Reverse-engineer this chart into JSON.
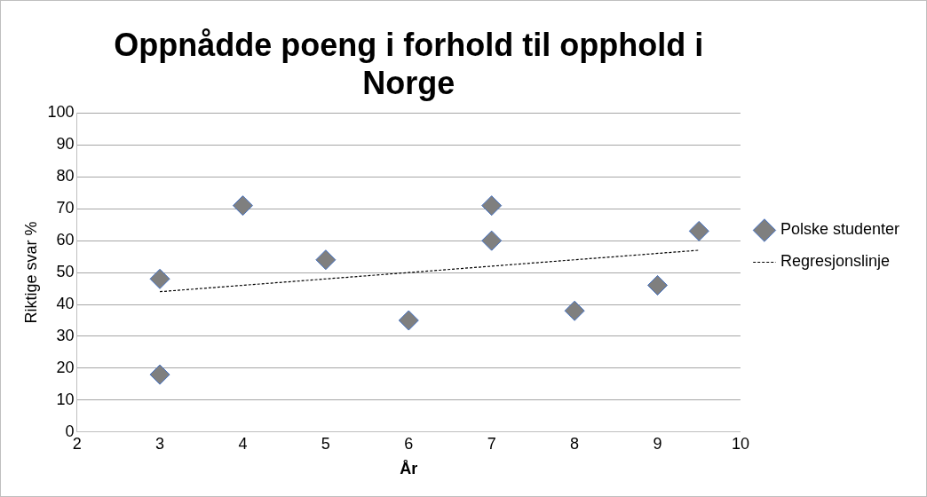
{
  "chart_data": {
    "type": "scatter",
    "title": "Oppnådde poeng i forhold til opphold i Norge",
    "xlabel": "År",
    "ylabel": "Riktige svar %",
    "xlim": [
      2,
      10
    ],
    "xticks": [
      2,
      3,
      4,
      5,
      6,
      7,
      8,
      9,
      10
    ],
    "ylim": [
      0,
      100
    ],
    "yticks": [
      0,
      10,
      20,
      30,
      40,
      50,
      60,
      70,
      80,
      90,
      100
    ],
    "grid": "y",
    "legend": "right",
    "series": [
      {
        "name": "Polske studenter",
        "marker": "diamond",
        "color": "#7f7f7f",
        "x": [
          3,
          3,
          4,
          5,
          6,
          7,
          7,
          8,
          9,
          9.5
        ],
        "values": [
          48,
          18,
          71,
          54,
          35,
          71,
          60,
          38,
          46,
          63
        ]
      },
      {
        "name": "Regresjonslinje",
        "type": "line",
        "color": "#000000",
        "line_style": "dashed",
        "x": [
          3,
          9.5
        ],
        "values": [
          44,
          57
        ]
      }
    ]
  }
}
